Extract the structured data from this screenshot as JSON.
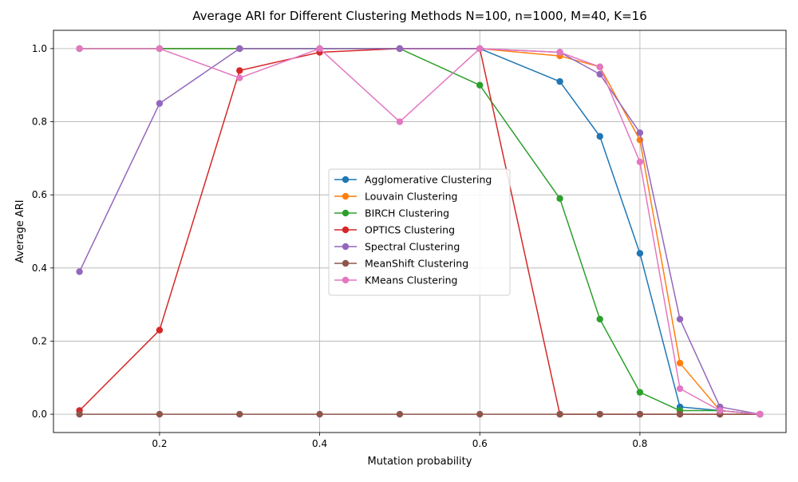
{
  "chart_data": {
    "type": "line",
    "title": "Average ARI for Different Clustering Methods N=100, n=1000, M=40, K=16",
    "xlabel": "Mutation probability",
    "ylabel": "Average ARI",
    "xlim": [
      0.0675,
      0.9825
    ],
    "ylim": [
      -0.05,
      1.05
    ],
    "xticks": [
      0.2,
      0.4,
      0.6,
      0.8
    ],
    "xtick_labels": [
      "0.2",
      "0.4",
      "0.6",
      "0.8"
    ],
    "yticks": [
      0.0,
      0.2,
      0.4,
      0.6,
      0.8,
      1.0
    ],
    "ytick_labels": [
      "0.0",
      "0.2",
      "0.4",
      "0.6",
      "0.8",
      "1.0"
    ],
    "grid": true,
    "legend_position": "center-right",
    "x": [
      0.1,
      0.2,
      0.3,
      0.4,
      0.5,
      0.6,
      0.7,
      0.75,
      0.8,
      0.85,
      0.9,
      0.95
    ],
    "series": [
      {
        "name": "Agglomerative Clustering",
        "color": "#1f77b4",
        "values": [
          1.0,
          1.0,
          1.0,
          1.0,
          1.0,
          1.0,
          0.91,
          0.76,
          0.44,
          0.02,
          0.01,
          0.0
        ]
      },
      {
        "name": "Louvain Clustering",
        "color": "#ff7f0e",
        "values": [
          1.0,
          1.0,
          1.0,
          1.0,
          1.0,
          1.0,
          0.98,
          0.95,
          0.75,
          0.14,
          0.01,
          0.0
        ]
      },
      {
        "name": "BIRCH Clustering",
        "color": "#2ca02c",
        "values": [
          1.0,
          1.0,
          1.0,
          1.0,
          1.0,
          0.9,
          0.59,
          0.26,
          0.06,
          0.01,
          0.01,
          0.0
        ]
      },
      {
        "name": "OPTICS Clustering",
        "color": "#d62728",
        "values": [
          0.01,
          0.23,
          0.94,
          0.99,
          1.0,
          1.0,
          0.0,
          0.0,
          0.0,
          0.0,
          0.0,
          0.0
        ]
      },
      {
        "name": "Spectral Clustering",
        "color": "#9467bd",
        "values": [
          0.39,
          0.85,
          1.0,
          1.0,
          1.0,
          1.0,
          0.99,
          0.93,
          0.77,
          0.26,
          0.02,
          0.0
        ]
      },
      {
        "name": "MeanShift Clustering",
        "color": "#8c564b",
        "values": [
          0.0,
          0.0,
          0.0,
          0.0,
          0.0,
          0.0,
          0.0,
          0.0,
          0.0,
          0.0,
          0.0,
          0.0
        ]
      },
      {
        "name": "KMeans Clustering",
        "color": "#e377c2",
        "values": [
          1.0,
          1.0,
          0.92,
          1.0,
          0.8,
          1.0,
          0.99,
          0.95,
          0.69,
          0.07,
          0.01,
          0.0
        ]
      }
    ]
  }
}
